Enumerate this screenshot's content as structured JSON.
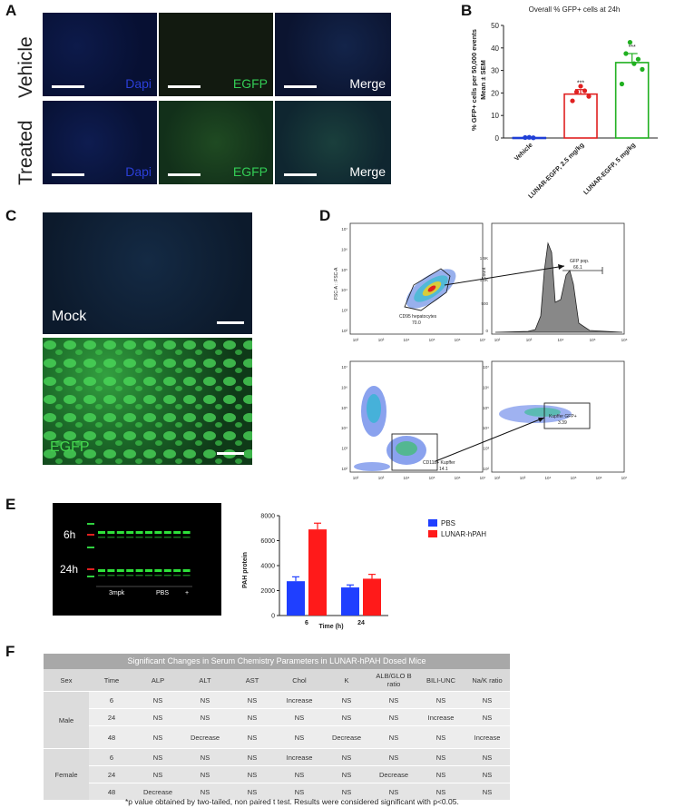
{
  "panelA": {
    "label": "A",
    "rows": [
      "Vehicle",
      "Treated"
    ],
    "channels": [
      "Dapi",
      "EGFP",
      "Merge"
    ],
    "channel_colors": [
      "#2233cc",
      "#22bb44",
      "#ffffff"
    ]
  },
  "panelB": {
    "label": "B",
    "chart_data": {
      "type": "bar",
      "title": "Overall % GFP+ cells at 24h",
      "ylabel_lines": [
        "% GFP+ cells per 50,000 events",
        "Mean ± SEM"
      ],
      "categories": [
        "Vehicle",
        "LUNAR-EGFP, 2.5 mg/kg",
        "LUNAR-EGFP, 5 mg/kg"
      ],
      "values": [
        0.2,
        19.5,
        33.5
      ],
      "sem": [
        0.1,
        2.0,
        4.0
      ],
      "points": [
        [
          0.2,
          0.3,
          0.1
        ],
        [
          16.5,
          20.5,
          23.0,
          21.0,
          18.5
        ],
        [
          24.0,
          37.5,
          42.5,
          33.0,
          35.0,
          30.5
        ]
      ],
      "significance": [
        "",
        "***",
        "***"
      ],
      "colors": [
        "#1f3fd6",
        "#e02020",
        "#20b020"
      ],
      "ylim": [
        0,
        50
      ],
      "yticks": [
        0,
        10,
        20,
        30,
        40,
        50
      ]
    }
  },
  "panelC": {
    "label": "C",
    "labels": [
      "Mock",
      "EGFP"
    ]
  },
  "panelD": {
    "label": "D",
    "gate1_label": "CD95 hepatocytes",
    "gate1_value": "70.0",
    "gate2_label": "GFP pop.",
    "gate2_value": "66.1",
    "gate3_label": "CD11b+ Kupffer",
    "gate3_value": "14.1",
    "gate4_label": "Kupffer GFP+",
    "gate4_value": "3.39",
    "axis_y1": "FSC-A :: FSC-A",
    "axis_y2": "Count",
    "log_ticks": [
      "10²",
      "10³",
      "10⁴",
      "10⁵",
      "10⁶",
      "10⁷"
    ],
    "count_ticks": [
      "0",
      "500",
      "1.0K",
      "1.5K"
    ]
  },
  "panelE": {
    "label": "E",
    "blot_row_labels": [
      "6h",
      "24h"
    ],
    "blot_group_labels": [
      "3mpk",
      "PBS",
      "+"
    ],
    "chart_data": {
      "type": "bar",
      "categories": [
        "6",
        "24"
      ],
      "series": [
        {
          "name": "PBS",
          "values": [
            2750,
            2250
          ],
          "err": [
            350,
            200
          ],
          "color": "#1f3fff"
        },
        {
          "name": "LUNAR-hPAH",
          "values": [
            6900,
            2950
          ],
          "err": [
            500,
            350
          ],
          "color": "#ff1a1a"
        }
      ],
      "xlabel": "Time (h)",
      "ylabel": "PAH protein",
      "ylim": [
        0,
        8000
      ],
      "yticks": [
        0,
        2000,
        4000,
        6000,
        8000
      ]
    }
  },
  "panelF": {
    "label": "F",
    "title": "Significant Changes in Serum Chemistry Parameters in LUNAR-hPAH Dosed Mice",
    "headers": [
      "Sex",
      "Time",
      "ALP",
      "ALT",
      "AST",
      "Chol",
      "K",
      "ALB/GLO B ratio",
      "BILI-UNC",
      "Na/K ratio"
    ],
    "groups": [
      {
        "sex": "Male",
        "rows": [
          [
            "6",
            "NS",
            "NS",
            "NS",
            "Increase",
            "NS",
            "NS",
            "NS",
            "NS"
          ],
          [
            "24",
            "NS",
            "NS",
            "NS",
            "NS",
            "NS",
            "NS",
            "Increase",
            "NS"
          ],
          [
            "48",
            "NS",
            "Decrease",
            "NS",
            "NS",
            "Decrease",
            "NS",
            "NS",
            "Increase"
          ]
        ]
      },
      {
        "sex": "Female",
        "rows": [
          [
            "6",
            "NS",
            "NS",
            "NS",
            "Increase",
            "NS",
            "NS",
            "NS",
            "NS"
          ],
          [
            "24",
            "NS",
            "NS",
            "NS",
            "NS",
            "NS",
            "Decrease",
            "NS",
            "NS"
          ],
          [
            "48",
            "Decrease",
            "NS",
            "NS",
            "NS",
            "NS",
            "NS",
            "NS",
            "NS"
          ]
        ]
      }
    ],
    "footnote": "*p value obtained by two-tailed, non paired t test. Results were considered significant with p<0.05."
  }
}
